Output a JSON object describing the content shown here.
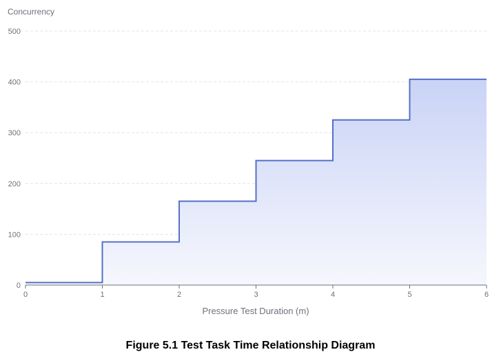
{
  "chart_data": {
    "type": "line",
    "step": "end",
    "x": [
      0,
      1,
      2,
      3,
      4,
      5,
      6
    ],
    "series": [
      {
        "values": [
          5,
          85,
          165,
          245,
          325,
          405,
          405
        ]
      }
    ],
    "ylabel": "Concurrency",
    "xlabel": "Pressure Test Duration (m)",
    "ylim": [
      0,
      500
    ],
    "xlim": [
      0,
      6
    ],
    "x_ticks": [
      "0",
      "1",
      "2",
      "3",
      "4",
      "5",
      "6"
    ],
    "y_ticks": [
      "0",
      "100",
      "200",
      "300",
      "400",
      "500"
    ],
    "grid": true,
    "area_fill": true,
    "colors": {
      "line": "#5470c6",
      "area_top": "#c9d3f6",
      "area_bottom": "#f6f7fd"
    }
  },
  "caption": "Figure 5.1 Test Task Time Relationship Diagram"
}
